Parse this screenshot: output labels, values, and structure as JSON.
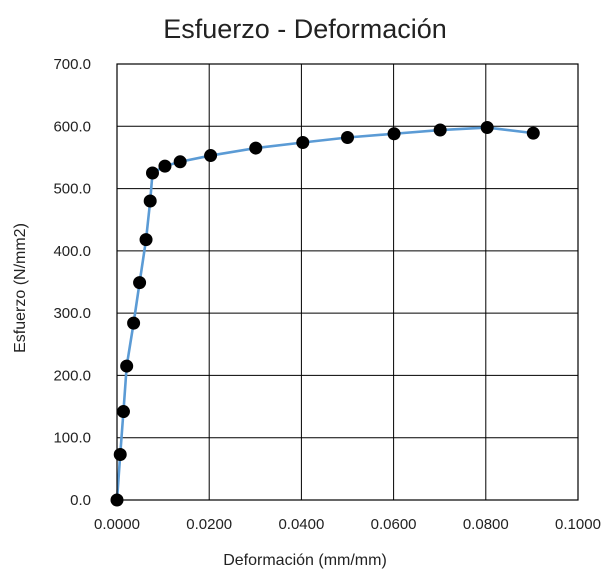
{
  "chart_data": {
    "type": "scatter",
    "title": "Esfuerzo - Deformación",
    "xlabel": "Deformación (mm/mm)",
    "ylabel": "Esfuerzo (N/mm2)",
    "xlim": [
      0,
      0.1
    ],
    "ylim": [
      0,
      700
    ],
    "x_ticks": [
      "0.0000",
      "0.0200",
      "0.0400",
      "0.0600",
      "0.0800",
      "0.1000"
    ],
    "y_ticks": [
      "0.0",
      "100.0",
      "200.0",
      "300.0",
      "400.0",
      "500.0",
      "600.0",
      "700.0"
    ],
    "x_tick_values": [
      0,
      0.02,
      0.04,
      0.06,
      0.08,
      0.1
    ],
    "y_tick_values": [
      0,
      100,
      200,
      300,
      400,
      500,
      600,
      700
    ],
    "grid": true,
    "series": [
      {
        "marker_color": "#000000",
        "line_color": "#5b9bd5",
        "points": [
          {
            "x": 0.0,
            "y": 0
          },
          {
            "x": 0.0007,
            "y": 73
          },
          {
            "x": 0.0014,
            "y": 142
          },
          {
            "x": 0.0021,
            "y": 215
          },
          {
            "x": 0.0036,
            "y": 284
          },
          {
            "x": 0.0049,
            "y": 349
          },
          {
            "x": 0.0063,
            "y": 418
          },
          {
            "x": 0.0072,
            "y": 480
          },
          {
            "x": 0.0077,
            "y": 525
          },
          {
            "x": 0.0104,
            "y": 536
          },
          {
            "x": 0.0137,
            "y": 543
          },
          {
            "x": 0.0203,
            "y": 553
          },
          {
            "x": 0.0301,
            "y": 565
          },
          {
            "x": 0.0403,
            "y": 574
          },
          {
            "x": 0.05,
            "y": 582
          },
          {
            "x": 0.0601,
            "y": 588
          },
          {
            "x": 0.0701,
            "y": 594
          },
          {
            "x": 0.0803,
            "y": 598
          },
          {
            "x": 0.0903,
            "y": 589
          }
        ]
      }
    ]
  }
}
